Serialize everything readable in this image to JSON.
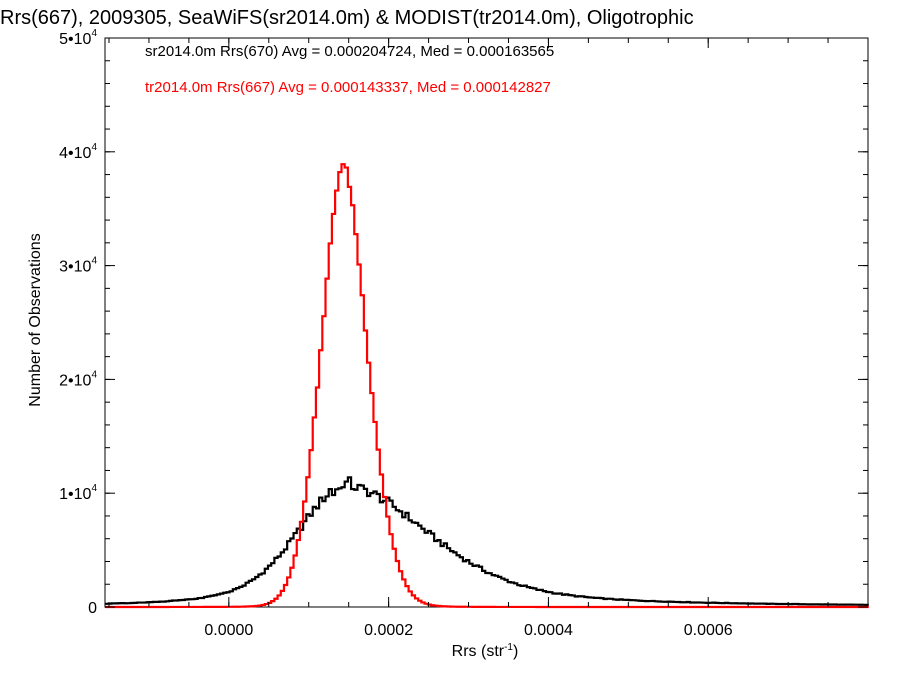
{
  "chart_data": {
    "type": "line",
    "title": "Rrs(667), 2009305, SeaWiFS(sr2014.0m) & MODIST(tr2014.0m), Oligotrophic",
    "xlabel": "Rrs (str",
    "xlabel_sup": "-1",
    "xlabel_end": ")",
    "ylabel": "Number of Observations",
    "xlim": [
      -0.000155,
      0.0008
    ],
    "ylim": [
      0,
      50000
    ],
    "x_ticks": [
      0.0,
      0.0002,
      0.0004,
      0.0006
    ],
    "x_tick_labels": [
      "0.0000",
      "0.0002",
      "0.0004",
      "0.0006"
    ],
    "y_ticks": [
      {
        "value": 0,
        "mantissa": "0",
        "exp": ""
      },
      {
        "value": 10000,
        "mantissa": "1•10",
        "exp": "4"
      },
      {
        "value": 20000,
        "mantissa": "2•10",
        "exp": "4"
      },
      {
        "value": 30000,
        "mantissa": "3•10",
        "exp": "4"
      },
      {
        "value": 40000,
        "mantissa": "4•10",
        "exp": "4"
      },
      {
        "value": 50000,
        "mantissa": "5•10",
        "exp": "4"
      }
    ],
    "grid": false,
    "series": [
      {
        "sensor": "sr2014.0m",
        "color": "#000000",
        "label": "sr2014.0m Rrs(670) Avg = 0.000204724, Med = 0.000163565",
        "mean": 0.000145,
        "sigma_left": 6e-05,
        "sigma_right": 0.000105,
        "peak": 10600
      },
      {
        "sensor": "tr2014.0m",
        "color": "#ff0000",
        "label": "tr2014.0m Rrs(667) Avg = 0.000143337, Med = 0.000142827",
        "mean": 0.000143,
        "sigma_left": 3e-05,
        "sigma_right": 3.3e-05,
        "peak": 38800
      }
    ]
  }
}
